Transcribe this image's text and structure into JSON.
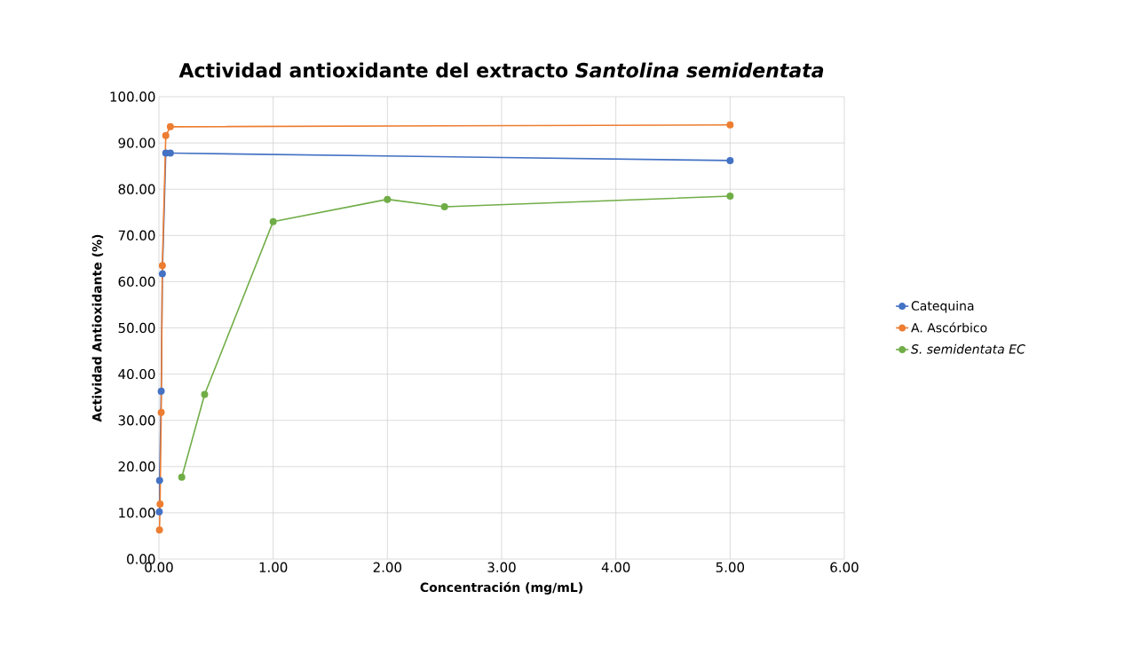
{
  "chart_data": {
    "type": "line",
    "title": "Actividad antioxidante del extracto *Santolina semidentata*",
    "xlabel": "Concentración (mg/mL)",
    "ylabel": "Actividad Antioxidante (%)",
    "series": [
      {
        "name": "Catequina",
        "color": "#4472c4",
        "x": [
          0.003,
          0.006,
          0.02,
          0.03,
          0.06,
          0.1,
          5.0
        ],
        "values": [
          10.2,
          17.0,
          36.3,
          61.7,
          87.8,
          87.8,
          86.2
        ]
      },
      {
        "name": "A. Ascórbico",
        "color": "#ed7d31",
        "x": [
          0.005,
          0.01,
          0.02,
          0.03,
          0.06,
          0.1,
          5.0
        ],
        "values": [
          6.3,
          11.9,
          31.7,
          63.5,
          91.6,
          93.5,
          93.9
        ]
      },
      {
        "name": "*S. semidentata EC*",
        "color": "#70ad47",
        "x": [
          0.2,
          0.4,
          1.0,
          2.0,
          2.5,
          5.0
        ],
        "values": [
          17.7,
          35.6,
          73.0,
          77.8,
          76.2,
          78.5
        ]
      }
    ],
    "xlim": [
      0,
      6
    ],
    "ylim": [
      0,
      100
    ],
    "xticks": [
      {
        "value": 0,
        "label": "0.00"
      },
      {
        "value": 1,
        "label": "1.00"
      },
      {
        "value": 2,
        "label": "2.00"
      },
      {
        "value": 3,
        "label": "3.00"
      },
      {
        "value": 4,
        "label": "4.00"
      },
      {
        "value": 5,
        "label": "5.00"
      },
      {
        "value": 6,
        "label": "6.00"
      }
    ],
    "yticks": [
      {
        "value": 0,
        "label": "0.00"
      },
      {
        "value": 10,
        "label": "10.00"
      },
      {
        "value": 20,
        "label": "20.00"
      },
      {
        "value": 30,
        "label": "30.00"
      },
      {
        "value": 40,
        "label": "40.00"
      },
      {
        "value": 50,
        "label": "50.00"
      },
      {
        "value": 60,
        "label": "60.00"
      },
      {
        "value": 70,
        "label": "70.00"
      },
      {
        "value": 80,
        "label": "80.00"
      },
      {
        "value": 90,
        "label": "90.00"
      },
      {
        "value": 100,
        "label": "100.00"
      }
    ],
    "grid": true,
    "legend": "right",
    "marker": "circle",
    "line_style": "solid"
  }
}
